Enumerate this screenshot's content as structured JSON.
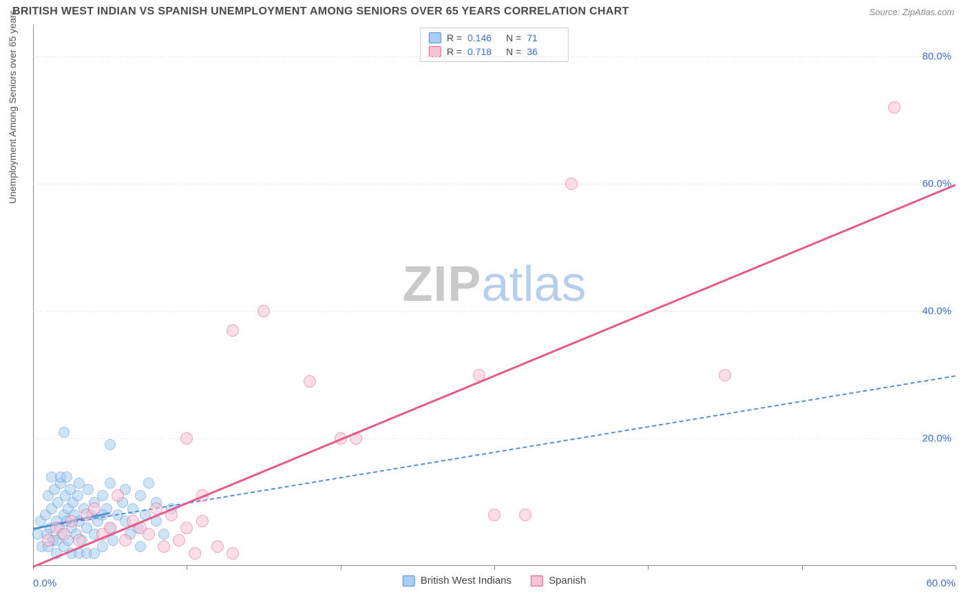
{
  "title": "BRITISH WEST INDIAN VS SPANISH UNEMPLOYMENT AMONG SENIORS OVER 65 YEARS CORRELATION CHART",
  "source": "Source: ZipAtlas.com",
  "y_axis_label": "Unemployment Among Seniors over 65 years",
  "watermark": {
    "part1": "ZIP",
    "part2": "atlas"
  },
  "plot": {
    "xlim": [
      0,
      60
    ],
    "ylim": [
      0,
      85
    ],
    "x_ticks": [
      0,
      10,
      20,
      30,
      40,
      50,
      60
    ],
    "x_tick_labels": [
      "0.0%",
      "",
      "",
      "",
      "",
      "",
      "60.0%"
    ],
    "y_ticks": [
      20,
      40,
      60,
      80
    ],
    "y_tick_labels": [
      "20.0%",
      "40.0%",
      "60.0%",
      "80.0%"
    ],
    "grid_color": "#e8e8e8",
    "axis_color": "#888888",
    "background_color": "#ffffff",
    "tick_label_color": "#3b6fc9"
  },
  "series": [
    {
      "id": "bwi",
      "name": "British West Indians",
      "fill_color": "#a9cdf0",
      "stroke_color": "#4f8fd6",
      "marker_radius": 8,
      "fill_opacity": 0.55,
      "R": "0.146",
      "N": "71",
      "trend": {
        "x1": 0,
        "y1": 6,
        "x2": 60,
        "y2": 30,
        "dashed": true,
        "width": 2,
        "color": "#4f8fd6",
        "solid_segment": {
          "x1": 0,
          "y1": 6,
          "x2": 5,
          "y2": 8.5,
          "width": 3
        }
      },
      "points": [
        [
          0.3,
          5
        ],
        [
          0.5,
          7
        ],
        [
          0.6,
          3
        ],
        [
          0.8,
          8
        ],
        [
          0.9,
          5
        ],
        [
          1.0,
          11
        ],
        [
          1.1,
          6
        ],
        [
          1.2,
          9
        ],
        [
          1.3,
          4
        ],
        [
          1.4,
          12
        ],
        [
          1.5,
          7
        ],
        [
          1.5,
          2
        ],
        [
          1.6,
          10
        ],
        [
          1.7,
          6
        ],
        [
          1.8,
          13
        ],
        [
          1.9,
          5
        ],
        [
          2.0,
          8
        ],
        [
          2.0,
          3
        ],
        [
          2.1,
          11
        ],
        [
          2.2,
          7
        ],
        [
          2.3,
          9
        ],
        [
          2.3,
          4
        ],
        [
          2.4,
          12
        ],
        [
          2.5,
          6
        ],
        [
          2.5,
          2
        ],
        [
          2.6,
          10
        ],
        [
          2.7,
          8
        ],
        [
          2.8,
          5
        ],
        [
          2.9,
          11
        ],
        [
          3.0,
          7
        ],
        [
          3.0,
          13
        ],
        [
          3.2,
          4
        ],
        [
          3.3,
          9
        ],
        [
          3.5,
          6
        ],
        [
          3.6,
          12
        ],
        [
          3.8,
          8
        ],
        [
          4.0,
          5
        ],
        [
          4.0,
          10
        ],
        [
          4.2,
          7
        ],
        [
          4.5,
          11
        ],
        [
          4.5,
          3
        ],
        [
          4.8,
          9
        ],
        [
          5.0,
          6
        ],
        [
          5.0,
          13
        ],
        [
          5.2,
          4
        ],
        [
          5.5,
          8
        ],
        [
          5.8,
          10
        ],
        [
          6.0,
          7
        ],
        [
          6.0,
          12
        ],
        [
          6.3,
          5
        ],
        [
          6.5,
          9
        ],
        [
          6.8,
          6
        ],
        [
          7.0,
          11
        ],
        [
          7.0,
          3
        ],
        [
          7.3,
          8
        ],
        [
          7.5,
          13
        ],
        [
          8.0,
          7
        ],
        [
          8.0,
          10
        ],
        [
          8.5,
          5
        ],
        [
          9.0,
          9
        ],
        [
          1.2,
          14
        ],
        [
          1.8,
          14
        ],
        [
          2.2,
          14
        ],
        [
          2.0,
          21
        ],
        [
          3.0,
          2
        ],
        [
          3.5,
          2
        ],
        [
          4.0,
          2
        ],
        [
          4.5,
          8
        ],
        [
          5.0,
          19
        ],
        [
          1.0,
          3
        ],
        [
          1.5,
          4
        ]
      ]
    },
    {
      "id": "spanish",
      "name": "Spanish",
      "fill_color": "#f6c3d4",
      "stroke_color": "#e35a8a",
      "marker_radius": 9,
      "fill_opacity": 0.55,
      "R": "0.718",
      "N": "36",
      "trend": {
        "x1": 0,
        "y1": 0,
        "x2": 60,
        "y2": 60,
        "dashed": false,
        "width": 3,
        "color": "#e35a8a"
      },
      "points": [
        [
          1.0,
          4
        ],
        [
          1.5,
          6
        ],
        [
          2.0,
          5
        ],
        [
          2.5,
          7
        ],
        [
          3.0,
          4
        ],
        [
          3.5,
          8
        ],
        [
          4.0,
          9
        ],
        [
          4.5,
          5
        ],
        [
          5.0,
          6
        ],
        [
          5.5,
          11
        ],
        [
          6.0,
          4
        ],
        [
          6.5,
          7
        ],
        [
          7.0,
          6
        ],
        [
          7.5,
          5
        ],
        [
          8.0,
          9
        ],
        [
          8.5,
          3
        ],
        [
          9.0,
          8
        ],
        [
          9.5,
          4
        ],
        [
          10.0,
          6
        ],
        [
          10.5,
          2
        ],
        [
          11.0,
          7
        ],
        [
          12.0,
          3
        ],
        [
          13.0,
          2
        ],
        [
          10.0,
          20
        ],
        [
          11.0,
          11
        ],
        [
          13.0,
          37
        ],
        [
          15.0,
          40
        ],
        [
          18.0,
          29
        ],
        [
          20.0,
          20
        ],
        [
          21.0,
          20
        ],
        [
          29.0,
          30
        ],
        [
          30.0,
          8
        ],
        [
          32.0,
          8
        ],
        [
          35.0,
          60
        ],
        [
          45.0,
          30
        ],
        [
          56.0,
          72
        ]
      ]
    }
  ],
  "stats_box_labels": {
    "R": "R =",
    "N": "N ="
  },
  "bottom_legend": [
    {
      "label": "British West Indians",
      "fill": "#a9cdf0",
      "stroke": "#4f8fd6"
    },
    {
      "label": "Spanish",
      "fill": "#f6c3d4",
      "stroke": "#e35a8a"
    }
  ]
}
